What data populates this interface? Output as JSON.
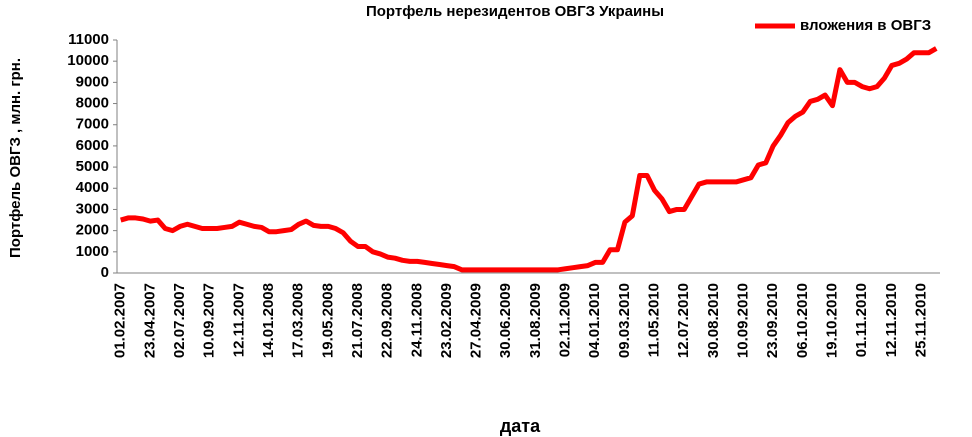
{
  "chart_data": {
    "type": "line",
    "title": "Портфель нерезидентов ОВГЗ Украины",
    "x_label": "дата",
    "y_label": "Портфель ОВГЗ , млн. грн.",
    "categories": [
      "01.02.2007",
      null,
      null,
      null,
      "23.04.2007",
      null,
      null,
      null,
      "02.07.2007",
      null,
      null,
      null,
      "10.09.2007",
      null,
      null,
      null,
      "12.11.2007",
      null,
      null,
      null,
      "14.01.2008",
      null,
      null,
      null,
      "17.03.2008",
      null,
      null,
      null,
      "19.05.2008",
      null,
      null,
      null,
      "21.07.2008",
      null,
      null,
      null,
      "22.09.2008",
      null,
      null,
      null,
      "24.11.2008",
      null,
      null,
      null,
      "23.02.2009",
      null,
      null,
      null,
      "27.04.2009",
      null,
      null,
      null,
      "30.06.2009",
      null,
      null,
      null,
      "31.08.2009",
      null,
      null,
      null,
      "02.11.2009",
      null,
      null,
      null,
      "04.01.2010",
      null,
      null,
      null,
      "09.03.2010",
      null,
      null,
      null,
      "11.05.2010",
      null,
      null,
      null,
      "12.07.2010",
      null,
      null,
      null,
      "30.08.2010",
      null,
      null,
      null,
      "10.09.2010",
      null,
      null,
      null,
      "23.09.2010",
      null,
      null,
      null,
      "06.10.2010",
      null,
      null,
      null,
      "19.10.2010",
      null,
      null,
      null,
      "01.11.2010",
      null,
      null,
      null,
      "12.11.2010",
      null,
      null,
      null,
      "25.11.2010",
      null,
      null
    ],
    "series": [
      {
        "name": "вложения в ОВГЗ",
        "color": "#ff0000",
        "values": [
          2500,
          2600,
          2600,
          2550,
          2450,
          2500,
          2100,
          2000,
          2200,
          2300,
          2200,
          2100,
          2100,
          2100,
          2150,
          2200,
          2400,
          2300,
          2200,
          2150,
          1950,
          1950,
          2000,
          2050,
          2300,
          2450,
          2250,
          2200,
          2200,
          2100,
          1900,
          1500,
          1250,
          1250,
          1000,
          900,
          750,
          700,
          600,
          550,
          550,
          500,
          450,
          400,
          350,
          300,
          150,
          150,
          150,
          150,
          150,
          150,
          150,
          150,
          150,
          150,
          150,
          150,
          150,
          150,
          200,
          250,
          300,
          350,
          500,
          500,
          1100,
          1100,
          2400,
          2700,
          4600,
          4600,
          3900,
          3500,
          2900,
          3000,
          3000,
          3600,
          4200,
          4300,
          4300,
          4300,
          4300,
          4300,
          4400,
          4500,
          5100,
          5200,
          6000,
          6500,
          7100,
          7400,
          7600,
          8100,
          8200,
          8400,
          7900,
          9600,
          9000,
          9000,
          8800,
          8700,
          8800,
          9200,
          9800,
          9900,
          10100,
          10400,
          10400,
          10400,
          10600
        ]
      }
    ],
    "ylim": [
      0,
      11000
    ],
    "yticks": [
      0,
      1000,
      2000,
      3000,
      4000,
      5000,
      6000,
      7000,
      8000,
      9000,
      10000,
      11000
    ],
    "grid": false,
    "legend": "top-right"
  }
}
